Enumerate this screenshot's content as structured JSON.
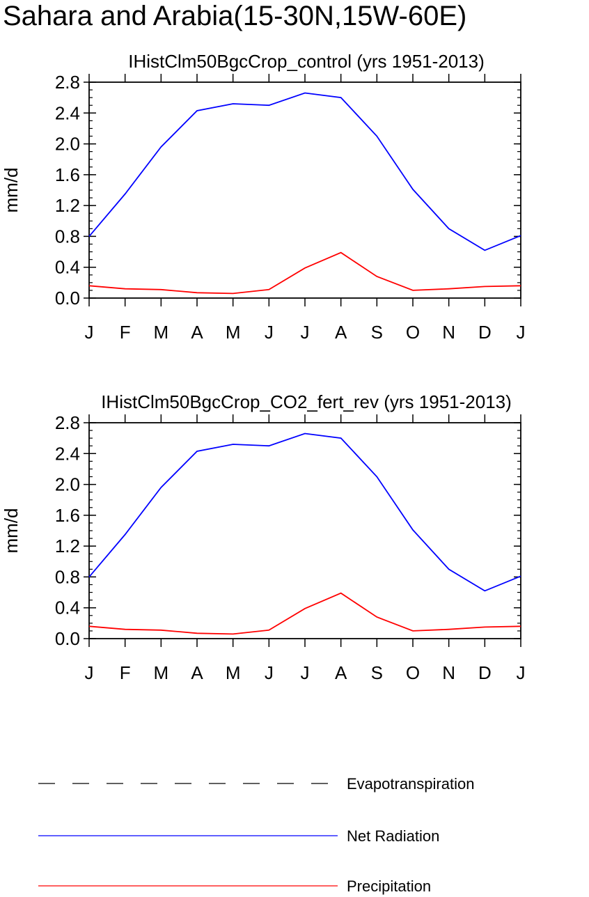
{
  "figure_title": "Sahara and Arabia(15-30N,15W-60E)",
  "chart_data": [
    {
      "type": "line",
      "title": "IHistClm50BgcCrop_control (yrs 1951-2013)",
      "xlabel": "",
      "ylabel": "mm/d",
      "categories": [
        "J",
        "F",
        "M",
        "A",
        "M",
        "J",
        "J",
        "A",
        "S",
        "O",
        "N",
        "D",
        "J"
      ],
      "ylim": [
        0,
        2.8
      ],
      "yticks": [
        "0.0",
        "0.4",
        "0.8",
        "1.2",
        "1.6",
        "2.0",
        "2.4",
        "2.8"
      ],
      "series": [
        {
          "name": "Net Radiation",
          "color": "#0000ff",
          "values": [
            0.8,
            1.35,
            1.96,
            2.43,
            2.52,
            2.5,
            2.66,
            2.6,
            2.1,
            1.41,
            0.9,
            0.62,
            0.81
          ]
        },
        {
          "name": "Precipitation",
          "color": "#ff0000",
          "values": [
            0.16,
            0.12,
            0.11,
            0.07,
            0.06,
            0.11,
            0.39,
            0.59,
            0.28,
            0.1,
            0.12,
            0.15,
            0.16
          ]
        }
      ]
    },
    {
      "type": "line",
      "title": "IHistClm50BgcCrop_CO2_fert_rev (yrs 1951-2013)",
      "xlabel": "",
      "ylabel": "mm/d",
      "categories": [
        "J",
        "F",
        "M",
        "A",
        "M",
        "J",
        "J",
        "A",
        "S",
        "O",
        "N",
        "D",
        "J"
      ],
      "ylim": [
        0,
        2.8
      ],
      "yticks": [
        "0.0",
        "0.4",
        "0.8",
        "1.2",
        "1.6",
        "2.0",
        "2.4",
        "2.8"
      ],
      "series": [
        {
          "name": "Net Radiation",
          "color": "#0000ff",
          "values": [
            0.8,
            1.35,
            1.96,
            2.43,
            2.52,
            2.5,
            2.66,
            2.6,
            2.1,
            1.41,
            0.9,
            0.62,
            0.81
          ]
        },
        {
          "name": "Precipitation",
          "color": "#ff0000",
          "values": [
            0.16,
            0.12,
            0.11,
            0.07,
            0.06,
            0.11,
            0.39,
            0.59,
            0.28,
            0.1,
            0.12,
            0.15,
            0.16
          ]
        }
      ]
    }
  ],
  "legend": {
    "placement": "bottom",
    "items": [
      {
        "label": "Evapotranspiration",
        "color": "#000000",
        "style": "dashed"
      },
      {
        "label": "Net Radiation",
        "color": "#0000ff",
        "style": "solid"
      },
      {
        "label": "Precipitation",
        "color": "#ff0000",
        "style": "solid"
      }
    ]
  }
}
